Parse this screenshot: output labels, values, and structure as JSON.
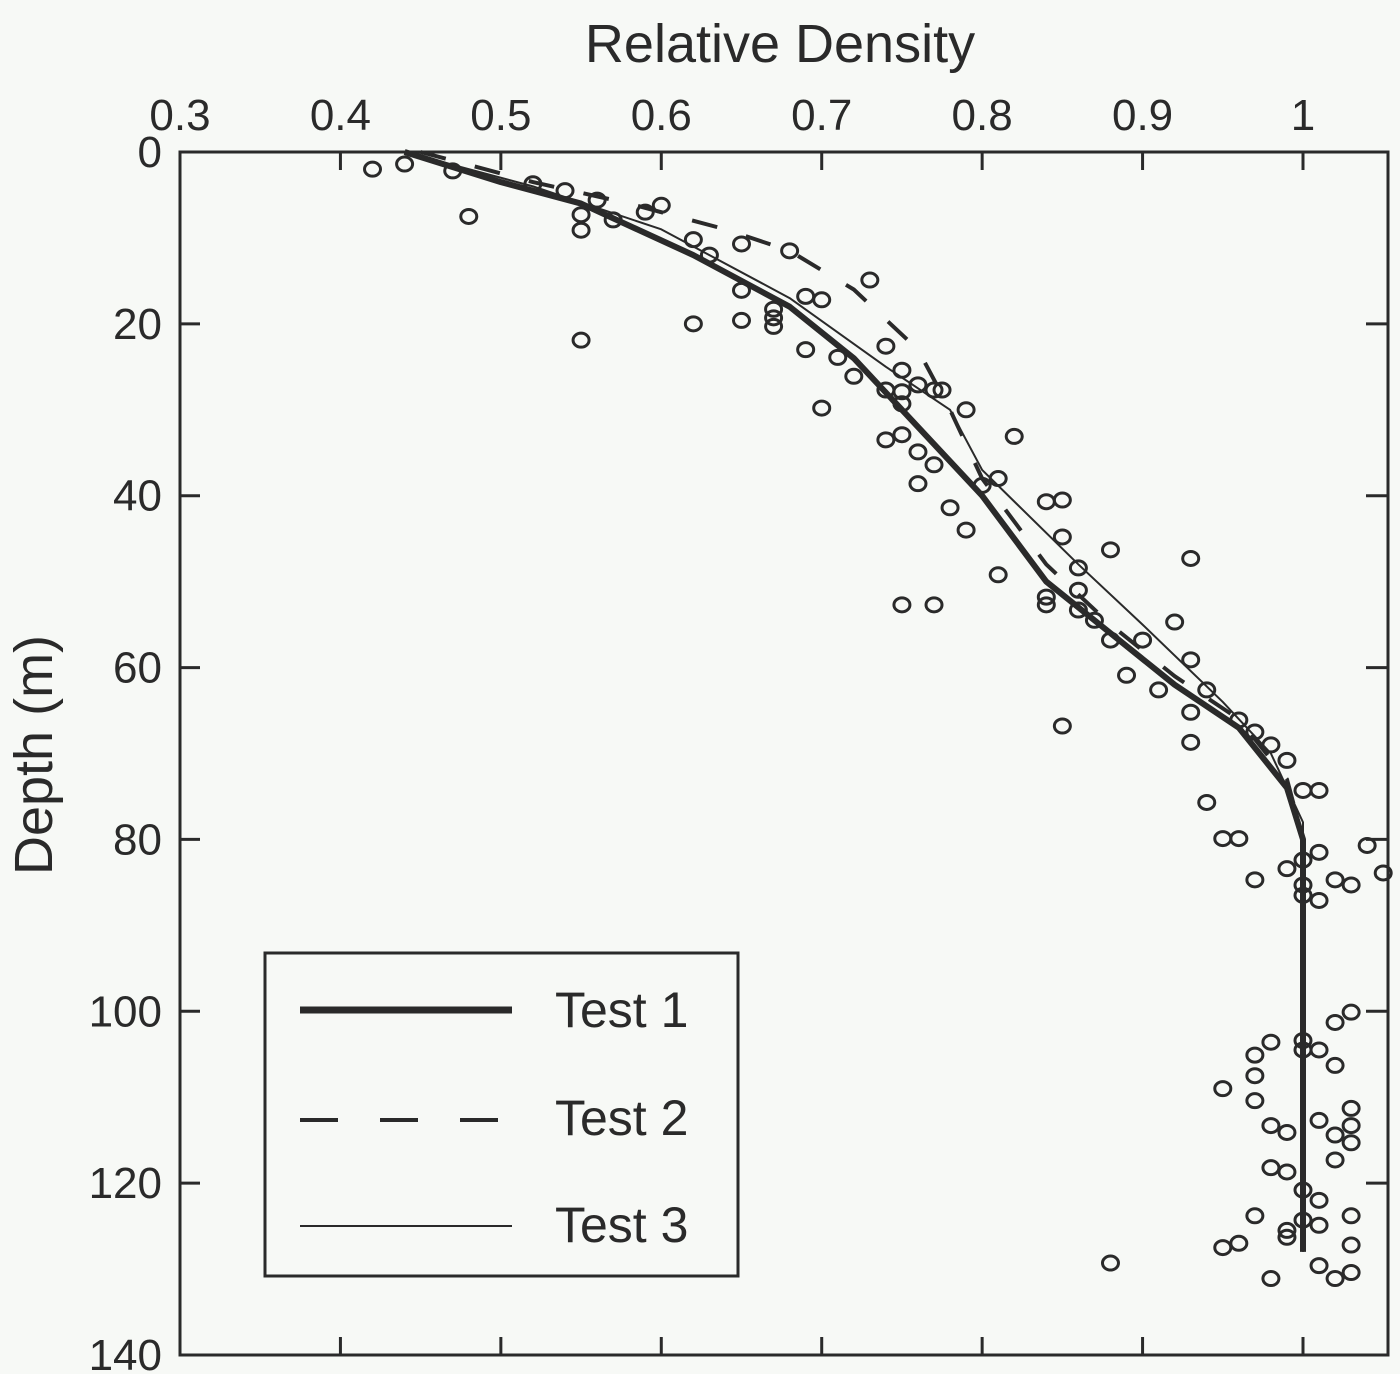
{
  "chart_data": {
    "type": "scatter",
    "title": "",
    "xlabel": "Relative Density",
    "ylabel": "Depth (m)",
    "xlim": [
      0.3,
      1.05
    ],
    "ylim": [
      0,
      140
    ],
    "y_inverted": true,
    "x_axis_position": "top",
    "grid": false,
    "legend_placement": "bottom-left",
    "x_ticks": [
      "0.3",
      "0.4",
      "0.5",
      "0.6",
      "0.7",
      "0.8",
      "0.9",
      "1"
    ],
    "y_ticks": [
      "0",
      "20",
      "40",
      "60",
      "80",
      "100",
      "120",
      "140"
    ],
    "colors": {
      "ink": "#2a2a2a",
      "background": "#f7f9f6"
    },
    "series": [
      {
        "name": "Test 1",
        "style": "thick-solid",
        "points": [
          [
            0.44,
            0
          ],
          [
            0.5,
            3.5
          ],
          [
            0.55,
            6
          ],
          [
            0.62,
            12
          ],
          [
            0.68,
            18
          ],
          [
            0.72,
            24
          ],
          [
            0.76,
            32
          ],
          [
            0.8,
            40
          ],
          [
            0.84,
            50
          ],
          [
            0.88,
            56
          ],
          [
            0.92,
            62
          ],
          [
            0.96,
            67
          ],
          [
            0.99,
            74
          ],
          [
            1.0,
            80
          ],
          [
            1.0,
            128
          ]
        ]
      },
      {
        "name": "Test 2",
        "style": "dashed",
        "points": [
          [
            0.45,
            0
          ],
          [
            0.52,
            3.5
          ],
          [
            0.58,
            6
          ],
          [
            0.64,
            9
          ],
          [
            0.68,
            11.5
          ],
          [
            0.72,
            16
          ],
          [
            0.76,
            23
          ],
          [
            0.78,
            30
          ],
          [
            0.8,
            38
          ],
          [
            0.84,
            48
          ],
          [
            0.88,
            55
          ],
          [
            0.92,
            61
          ],
          [
            0.96,
            66
          ],
          [
            0.99,
            73
          ],
          [
            1.0,
            80
          ],
          [
            1.0,
            128
          ]
        ]
      },
      {
        "name": "Test 3",
        "style": "thin-solid",
        "points": [
          [
            0.44,
            0
          ],
          [
            0.52,
            4
          ],
          [
            0.6,
            9
          ],
          [
            0.68,
            17
          ],
          [
            0.74,
            25
          ],
          [
            0.78,
            30
          ],
          [
            0.8,
            37
          ],
          [
            0.86,
            48
          ],
          [
            0.9,
            55
          ],
          [
            0.95,
            64
          ],
          [
            0.98,
            70
          ],
          [
            1.0,
            78
          ],
          [
            1.0,
            128
          ]
        ]
      }
    ],
    "observations": [
      [
        0.42,
        2
      ],
      [
        0.44,
        1.4
      ],
      [
        0.47,
        2.2
      ],
      [
        0.48,
        7.5
      ],
      [
        0.52,
        3.7
      ],
      [
        0.54,
        4.5
      ],
      [
        0.55,
        9.1
      ],
      [
        0.56,
        5.6
      ],
      [
        0.55,
        7.3
      ],
      [
        0.57,
        7.9
      ],
      [
        0.59,
        7.0
      ],
      [
        0.6,
        6.2
      ],
      [
        0.62,
        10.2
      ],
      [
        0.63,
        12
      ],
      [
        0.65,
        10.7
      ],
      [
        0.68,
        11.5
      ],
      [
        0.65,
        16.1
      ],
      [
        0.67,
        18.3
      ],
      [
        0.67,
        19.3
      ],
      [
        0.67,
        20.3
      ],
      [
        0.65,
        19.6
      ],
      [
        0.69,
        16.8
      ],
      [
        0.7,
        17.2
      ],
      [
        0.73,
        14.9
      ],
      [
        0.55,
        21.9
      ],
      [
        0.62,
        20
      ],
      [
        0.69,
        23
      ],
      [
        0.7,
        29.8
      ],
      [
        0.71,
        23.9
      ],
      [
        0.72,
        26.1
      ],
      [
        0.74,
        22.6
      ],
      [
        0.75,
        25.4
      ],
      [
        0.74,
        27.7
      ],
      [
        0.75,
        27.9
      ],
      [
        0.74,
        33.5
      ],
      [
        0.75,
        29.3
      ],
      [
        0.76,
        27.1
      ],
      [
        0.77,
        27.7
      ],
      [
        0.775,
        27.7
      ],
      [
        0.75,
        32.9
      ],
      [
        0.76,
        34.9
      ],
      [
        0.76,
        38.6
      ],
      [
        0.77,
        36.4
      ],
      [
        0.78,
        41.4
      ],
      [
        0.79,
        44
      ],
      [
        0.8,
        38.8
      ],
      [
        0.81,
        38
      ],
      [
        0.82,
        33.1
      ],
      [
        0.79,
        30
      ],
      [
        0.75,
        52.7
      ],
      [
        0.77,
        52.7
      ],
      [
        0.81,
        49.2
      ],
      [
        0.84,
        40.7
      ],
      [
        0.85,
        40.5
      ],
      [
        0.85,
        44.8
      ],
      [
        0.86,
        48.4
      ],
      [
        0.88,
        46.3
      ],
      [
        0.93,
        47.3
      ],
      [
        0.84,
        51.8
      ],
      [
        0.84,
        52.7
      ],
      [
        0.86,
        51
      ],
      [
        0.86,
        53.3
      ],
      [
        0.87,
        54.5
      ],
      [
        0.88,
        56.8
      ],
      [
        0.89,
        60.9
      ],
      [
        0.9,
        56.8
      ],
      [
        0.92,
        54.7
      ],
      [
        0.93,
        59.1
      ],
      [
        0.91,
        62.6
      ],
      [
        0.93,
        65.2
      ],
      [
        0.93,
        68.7
      ],
      [
        0.85,
        66.8
      ],
      [
        0.94,
        62.6
      ],
      [
        0.96,
        66.1
      ],
      [
        0.97,
        67.5
      ],
      [
        0.98,
        69
      ],
      [
        0.99,
        70.8
      ],
      [
        1.0,
        74.3
      ],
      [
        1.01,
        74.3
      ],
      [
        0.94,
        75.7
      ],
      [
        0.95,
        79.9
      ],
      [
        0.96,
        79.9
      ],
      [
        0.97,
        84.7
      ],
      [
        0.99,
        83.4
      ],
      [
        1.0,
        82.4
      ],
      [
        1.01,
        81.5
      ],
      [
        1.02,
        84.7
      ],
      [
        1.0,
        85.3
      ],
      [
        1.04,
        80.7
      ],
      [
        1.05,
        83.9
      ],
      [
        1.03,
        85.3
      ],
      [
        1.0,
        86.5
      ],
      [
        1.01,
        87.1
      ],
      [
        1.03,
        100.1
      ],
      [
        1.02,
        101.3
      ],
      [
        1.0,
        103.4
      ],
      [
        0.98,
        103.6
      ],
      [
        0.97,
        105.1
      ],
      [
        1.0,
        104.5
      ],
      [
        1.01,
        104.5
      ],
      [
        1.02,
        106.3
      ],
      [
        0.97,
        107.5
      ],
      [
        0.95,
        109
      ],
      [
        0.97,
        110.4
      ],
      [
        0.98,
        113.3
      ],
      [
        0.99,
        114.1
      ],
      [
        1.01,
        112.7
      ],
      [
        1.03,
        111.3
      ],
      [
        1.03,
        113.3
      ],
      [
        1.03,
        115.3
      ],
      [
        1.02,
        114.4
      ],
      [
        1.02,
        117.3
      ],
      [
        0.98,
        118.2
      ],
      [
        0.99,
        118.7
      ],
      [
        1.0,
        120.8
      ],
      [
        1.01,
        122
      ],
      [
        0.97,
        123.8
      ],
      [
        0.99,
        125.5
      ],
      [
        1.0,
        124.3
      ],
      [
        1.03,
        123.8
      ],
      [
        0.96,
        127
      ],
      [
        0.99,
        126.3
      ],
      [
        1.01,
        124.9
      ],
      [
        0.95,
        127.5
      ],
      [
        1.03,
        127.2
      ],
      [
        1.01,
        129.6
      ],
      [
        1.02,
        131.1
      ],
      [
        1.03,
        130.4
      ],
      [
        0.88,
        129.3
      ],
      [
        0.98,
        131.1
      ]
    ]
  }
}
